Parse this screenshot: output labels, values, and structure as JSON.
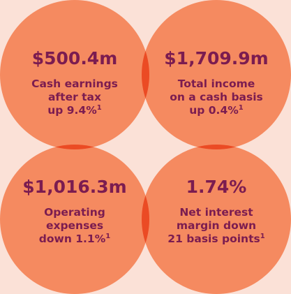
{
  "items": [
    {
      "value": "$500.4m",
      "lines": [
        "Cash earnings",
        "after tax",
        "up 9.4%"
      ],
      "footnote": "1"
    },
    {
      "value": "$1,709.9m",
      "lines": [
        "Total income",
        "on a cash basis",
        "up 0.4%"
      ],
      "footnote": "1"
    },
    {
      "value": "$1,016.3m",
      "lines": [
        "Operating",
        "expenses",
        "down 1.1%"
      ],
      "footnote": "1"
    },
    {
      "value": "1.74%",
      "lines": [
        "Net interest",
        "margin down",
        "21 basis points"
      ],
      "footnote": "1"
    }
  ]
}
